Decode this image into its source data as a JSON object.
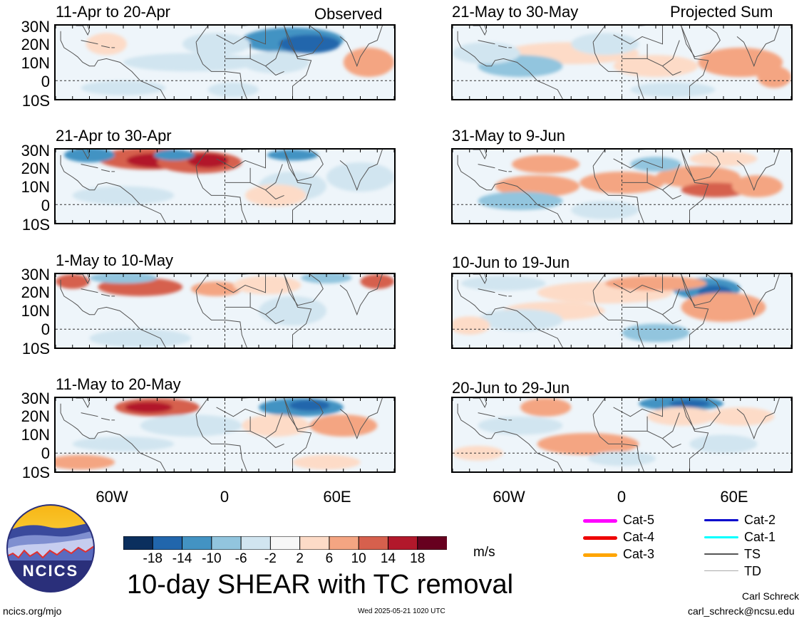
{
  "column_labels": {
    "observed": "Observed",
    "projected": "Projected Sum"
  },
  "lat_labels": [
    "30N",
    "20N",
    "10N",
    "0",
    "10S"
  ],
  "lon_labels": [
    "60W",
    "0",
    "60E"
  ],
  "panels": [
    {
      "title": "11-Apr to 20-Apr",
      "column": "observed",
      "variant": 0
    },
    {
      "title": "21-Apr to 30-Apr",
      "column": "observed",
      "variant": 1
    },
    {
      "title": "1-May to 10-May",
      "column": "observed",
      "variant": 2
    },
    {
      "title": "11-May to 20-May",
      "column": "observed",
      "variant": 3
    },
    {
      "title": "21-May to 30-May",
      "column": "projected",
      "variant": 4
    },
    {
      "title": "31-May to 9-Jun",
      "column": "projected",
      "variant": 5
    },
    {
      "title": "10-Jun to 19-Jun",
      "column": "projected",
      "variant": 6
    },
    {
      "title": "20-Jun to 29-Jun",
      "column": "projected",
      "variant": 7
    }
  ],
  "colorbar": {
    "colors": [
      "#0b2f5e",
      "#2166ac",
      "#4393c3",
      "#92c5de",
      "#d1e5f0",
      "#f7f7f7",
      "#fddbc7",
      "#f4a582",
      "#d6604d",
      "#b2182b",
      "#67001f"
    ],
    "tick_labels": [
      "-18",
      "-14",
      "-10",
      "-6",
      "-2",
      "2",
      "6",
      "10",
      "14",
      "18"
    ],
    "units": "m/s"
  },
  "legend": [
    {
      "label": "Cat-5",
      "color": "#ff00ff",
      "weight": "thick"
    },
    {
      "label": "Cat-4",
      "color": "#ee0000",
      "weight": "thick"
    },
    {
      "label": "Cat-3",
      "color": "#ffa500",
      "weight": "thick"
    },
    {
      "label": "Cat-2",
      "color": "#0000cc",
      "weight": "medium"
    },
    {
      "label": "Cat-1",
      "color": "#00ffff",
      "weight": "medium"
    },
    {
      "label": "TS",
      "color": "#555555",
      "weight": "thin"
    },
    {
      "label": "TD",
      "color": "#aaaaaa",
      "weight": "hair"
    }
  ],
  "main_title": "10-day SHEAR with TC removal",
  "logo_text": "NCICS",
  "footer": {
    "url": "ncics.org/mjo",
    "timestamp": "Wed 2025-05-21 1020 UTC",
    "author": "Carl Schreck",
    "email": "carl_schreck@ncsu.edu"
  }
}
